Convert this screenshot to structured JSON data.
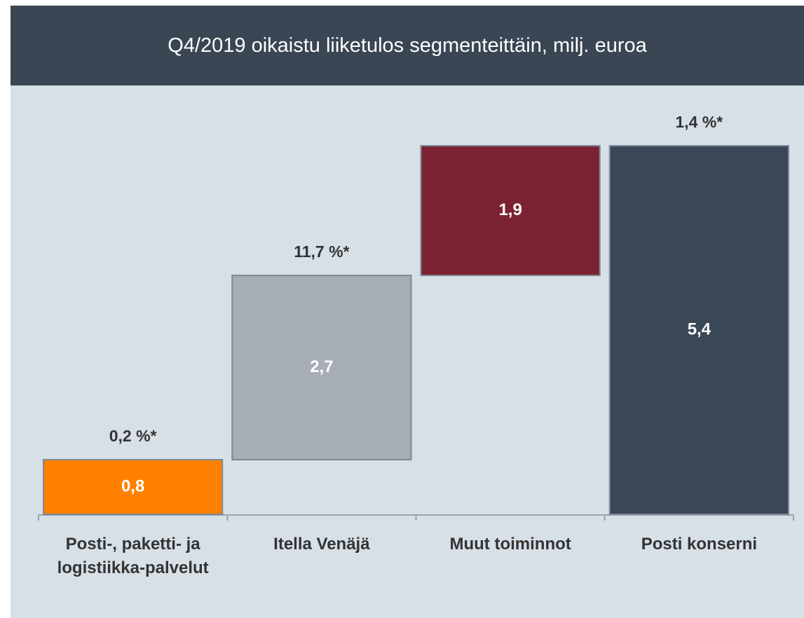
{
  "chart_data": {
    "type": "waterfall",
    "title": "Q4/2019 oikaistu liiketulos segmenteittäin, milj. euroa",
    "categories": [
      "Posti-, paketti- ja logistiikka-palvelut",
      "Itella Venäjä",
      "Muut toiminnot",
      "Posti konserni"
    ],
    "values": [
      0.8,
      2.7,
      1.9,
      5.4
    ],
    "value_labels": [
      "0,8",
      "2,7",
      "1,9",
      "5,4"
    ],
    "measures": [
      "relative",
      "relative",
      "relative",
      "total"
    ],
    "annotations": [
      "0,2 %*",
      "11,7 %*",
      null,
      "1,4 %*"
    ],
    "colors": [
      "#ff8000",
      "#a6adb4",
      "#7b2230",
      "#3a4756"
    ]
  }
}
